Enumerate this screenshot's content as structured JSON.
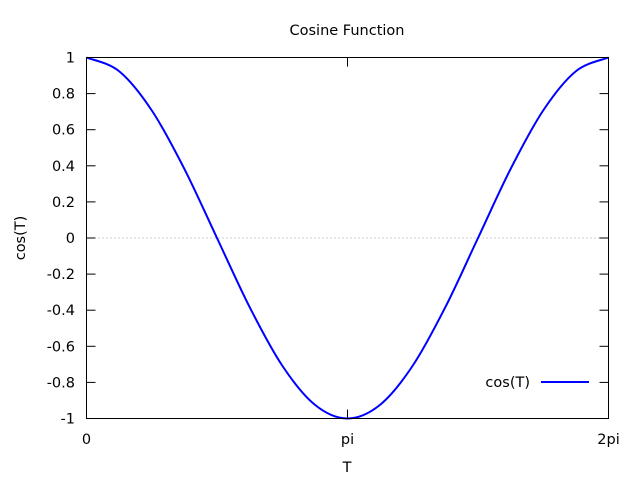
{
  "chart_data": {
    "type": "line",
    "title": "Cosine Function",
    "xlabel": "T",
    "ylabel": "cos(T)",
    "xlim": [
      0,
      6.283185307179586
    ],
    "ylim": [
      -1,
      1
    ],
    "x_ticks": [
      {
        "value": 0,
        "label": "0"
      },
      {
        "value": 3.141592653589793,
        "label": "pi"
      },
      {
        "value": 6.283185307179586,
        "label": "2pi"
      }
    ],
    "y_ticks": [
      {
        "value": 1,
        "label": "1"
      },
      {
        "value": 0.8,
        "label": "0.8"
      },
      {
        "value": 0.6,
        "label": "0.6"
      },
      {
        "value": 0.4,
        "label": "0.4"
      },
      {
        "value": 0.2,
        "label": "0.2"
      },
      {
        "value": 0,
        "label": "0"
      },
      {
        "value": -0.2,
        "label": "-0.2"
      },
      {
        "value": -0.4,
        "label": "-0.4"
      },
      {
        "value": -0.6,
        "label": "-0.6"
      },
      {
        "value": -0.8,
        "label": "-0.8"
      },
      {
        "value": -1,
        "label": "-1"
      }
    ],
    "zero_line": true,
    "grid": false,
    "legend_position": "bottom-right",
    "series": [
      {
        "name": "cos(T)",
        "color": "#0000ff",
        "x": [
          0,
          0.3927,
          0.7854,
          1.1781,
          1.5708,
          1.9635,
          2.3562,
          2.7489,
          3.1416,
          3.5343,
          3.927,
          4.3197,
          4.7124,
          5.1051,
          5.4978,
          5.8905,
          6.2832
        ],
        "y": [
          1,
          0.9239,
          0.7071,
          0.3827,
          0,
          -0.3827,
          -0.7071,
          -0.9239,
          -1,
          -0.9239,
          -0.7071,
          -0.3827,
          0,
          0.3827,
          0.7071,
          0.9239,
          1
        ]
      }
    ]
  }
}
